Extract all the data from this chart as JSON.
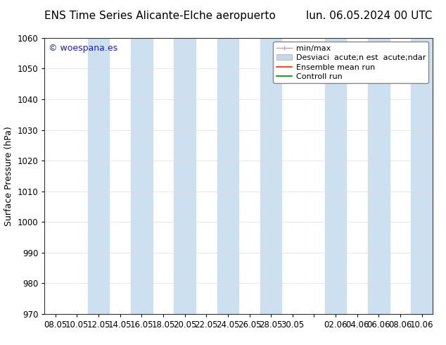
{
  "title_left": "ENS Time Series Alicante-Elche aeropuerto",
  "title_right": "lun. 06.05.2024 00 UTC",
  "ylabel": "Surface Pressure (hPa)",
  "ylim": [
    970,
    1060
  ],
  "yticks": [
    970,
    980,
    990,
    1000,
    1010,
    1020,
    1030,
    1040,
    1050,
    1060
  ],
  "xtick_labels": [
    "08.05",
    "10.05",
    "12.05",
    "14.05",
    "16.05",
    "18.05",
    "20.05",
    "22.05",
    "24.05",
    "26.05",
    "28.05",
    "30.05",
    "",
    "02.06",
    "04.06",
    "06.06",
    "08.06",
    "10.06"
  ],
  "watermark": "© woespana.es",
  "watermark_color": "#1a1aff",
  "shaded_columns_x": [
    2,
    4,
    6,
    8,
    10,
    13,
    15,
    17
  ],
  "shade_color": "#cce0f0",
  "background_color": "#ffffff",
  "plot_bg_color": "#ffffff",
  "legend_labels": [
    "min/max",
    "Desviaci  acute;n est  acute;ndar",
    "Ensemble mean run",
    "Controll run"
  ],
  "legend_colors": [
    "#aaaaaa",
    "#c5d8ea",
    "#ff0000",
    "#008800"
  ],
  "title_fontsize": 11,
  "axis_fontsize": 9,
  "tick_fontsize": 8.5,
  "legend_fontsize": 8
}
